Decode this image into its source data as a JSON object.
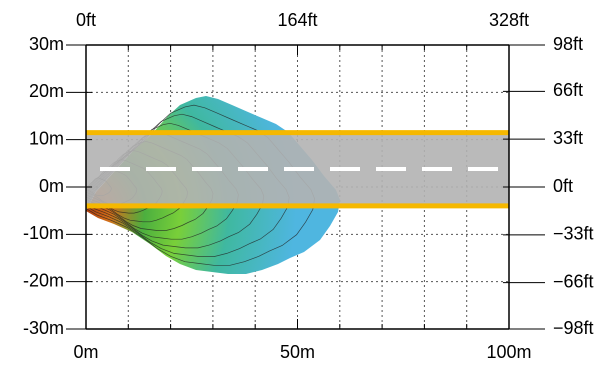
{
  "axes": {
    "bottom": {
      "unit": "m",
      "min": 0,
      "max": 100,
      "labels": [
        "0m",
        "50m",
        "100m"
      ],
      "label_values": [
        0,
        50,
        100
      ]
    },
    "top": {
      "unit": "ft",
      "min": 0,
      "max": 328,
      "labels": [
        "0ft",
        "164ft",
        "328ft"
      ],
      "label_values": [
        0,
        164,
        328
      ]
    },
    "left": {
      "unit": "m",
      "min": -30,
      "max": 30,
      "labels": [
        "30m",
        "20m",
        "10m",
        "0m",
        "-10m",
        "-20m",
        "-30m"
      ],
      "label_values": [
        30,
        20,
        10,
        0,
        -10,
        -20,
        -30
      ]
    },
    "right": {
      "unit": "ft",
      "min": -98,
      "max": 98,
      "labels": [
        "98ft",
        "66ft",
        "33ft",
        "0ft",
        "−33ft",
        "−66ft",
        "−98ft"
      ],
      "label_values": [
        98,
        66,
        33,
        0,
        -33,
        -66,
        -98
      ]
    }
  },
  "grid": {
    "enabled": true,
    "style": "dotted",
    "x_step_m": 10,
    "y_step_m": 10
  },
  "road": {
    "y_from_m": -4,
    "y_to_m": 11.5,
    "color": "#b3b3b3",
    "edge_line_color": "#f5b800",
    "center_line_y_m": 3.8,
    "center_line_color": "#ffffff"
  },
  "coverage": {
    "origin_m": [
      0,
      0
    ],
    "colors": [
      "#b23c0d",
      "#d2701a",
      "#3aa64a",
      "#6ccd3a",
      "#3fb8a0",
      "#4fb6e0"
    ],
    "contour_color": "#222222",
    "contour_levels": 9
  }
}
